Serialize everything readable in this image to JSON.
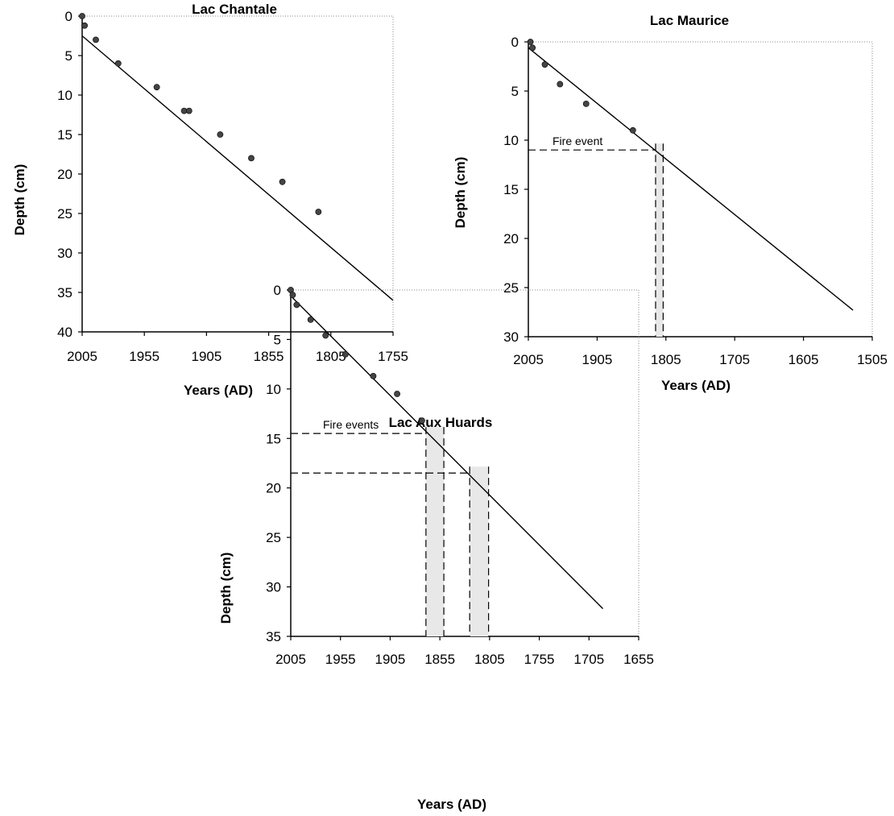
{
  "chart_data": [
    {
      "type": "scatter",
      "title": "Lac Chantale",
      "xlabel": "Years (AD)",
      "ylabel": "Depth (cm)",
      "x_reversed": true,
      "y_reversed": true,
      "xlim": [
        2005,
        1755
      ],
      "ylim": [
        0,
        40
      ],
      "xticks": [
        "2005",
        "1955",
        "1905",
        "1855",
        "1805",
        "1755"
      ],
      "yticks": [
        "0",
        "5",
        "10",
        "15",
        "20",
        "25",
        "30",
        "35",
        "40"
      ],
      "grid": false,
      "points": [
        {
          "x": 2005,
          "y": 0
        },
        {
          "x": 2003,
          "y": 1.2
        },
        {
          "x": 1994,
          "y": 3
        },
        {
          "x": 1976,
          "y": 6
        },
        {
          "x": 1945,
          "y": 9
        },
        {
          "x": 1923,
          "y": 12
        },
        {
          "x": 1919,
          "y": 12
        },
        {
          "x": 1894,
          "y": 15
        },
        {
          "x": 1869,
          "y": 18
        },
        {
          "x": 1844,
          "y": 21
        },
        {
          "x": 1815,
          "y": 24.8
        }
      ],
      "fit_line": [
        {
          "x": 2005,
          "y": 2.5
        },
        {
          "x": 1755,
          "y": 36
        }
      ],
      "fire_events": [],
      "annotation": ""
    },
    {
      "type": "scatter",
      "title": "Lac Maurice",
      "xlabel": "Years (AD)",
      "ylabel": "Depth (cm)",
      "x_reversed": true,
      "y_reversed": true,
      "xlim": [
        2005,
        1505
      ],
      "ylim": [
        0,
        30
      ],
      "xticks": [
        "2005",
        "1905",
        "1805",
        "1705",
        "1605",
        "1505"
      ],
      "yticks": [
        "0",
        "5",
        "10",
        "15",
        "20",
        "25",
        "30"
      ],
      "grid": false,
      "points": [
        {
          "x": 2002,
          "y": 0
        },
        {
          "x": 1999,
          "y": 0.6
        },
        {
          "x": 1981,
          "y": 2.3
        },
        {
          "x": 1959,
          "y": 4.3
        },
        {
          "x": 1921,
          "y": 6.3
        },
        {
          "x": 1853,
          "y": 9
        }
      ],
      "fit_line": [
        {
          "x": 2005,
          "y": 0.6
        },
        {
          "x": 1533,
          "y": 27.3
        }
      ],
      "fire_events": [
        {
          "depth": 11,
          "year_min": 1820,
          "year_max": 1809
        }
      ],
      "annotation": "Fire event"
    },
    {
      "type": "scatter",
      "title": "Lac Aux Huards",
      "xlabel": "Years (AD)",
      "ylabel": "Depth (cm)",
      "x_reversed": true,
      "y_reversed": true,
      "xlim": [
        2005,
        1655
      ],
      "ylim": [
        0,
        35
      ],
      "xticks": [
        "2005",
        "1955",
        "1905",
        "1855",
        "1805",
        "1755",
        "1705",
        "1655"
      ],
      "yticks": [
        "0",
        "5",
        "10",
        "15",
        "20",
        "25",
        "30",
        "35"
      ],
      "grid": false,
      "points": [
        {
          "x": 2005,
          "y": 0
        },
        {
          "x": 2003,
          "y": 0.5
        },
        {
          "x": 1999,
          "y": 1.5
        },
        {
          "x": 1985,
          "y": 3
        },
        {
          "x": 1970,
          "y": 4.6
        },
        {
          "x": 1950,
          "y": 6.5
        },
        {
          "x": 1922,
          "y": 8.7
        },
        {
          "x": 1898,
          "y": 10.5
        },
        {
          "x": 1873,
          "y": 13.2
        }
      ],
      "fit_line": [
        {
          "x": 2005,
          "y": 0.6
        },
        {
          "x": 1691,
          "y": 32.2
        }
      ],
      "fire_events": [
        {
          "depth": 14.5,
          "year_min": 1869,
          "year_max": 1851
        },
        {
          "depth": 18.5,
          "year_min": 1825,
          "year_max": 1806
        }
      ],
      "annotation": "Fire events"
    }
  ]
}
